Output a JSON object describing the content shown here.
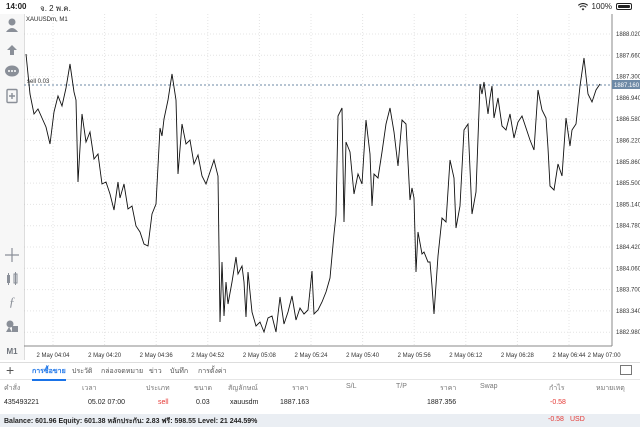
{
  "status": {
    "time": "14:00",
    "date": "จ. 2 พ.ค.",
    "battery": "100%"
  },
  "toolbar": {
    "icons": [
      "person-icon",
      "trade-icon",
      "chat-icon",
      "new-doc-icon",
      "crosshair-icon",
      "indicator-icon",
      "function-icon",
      "objects-icon",
      "timeframe-icon"
    ],
    "timeframe_label": "M1"
  },
  "chart": {
    "symbol_title": "XAUUSDm, M1",
    "position_label": "sell 0.03",
    "current_price_label": "1887.160",
    "price_ticks": [
      "1888.020",
      "1887.660",
      "1887.300",
      "1886.940",
      "1886.580",
      "1886.220",
      "1885.860",
      "1885.500",
      "1885.140",
      "1884.780",
      "1884.420",
      "1884.060",
      "1883.700",
      "1883.340",
      "1882.980"
    ],
    "time_ticks": [
      "2 May 04:04",
      "2 May 04:20",
      "2 May 04:36",
      "2 May 04:52",
      "2 May 05:08",
      "2 May 05:24",
      "2 May 05:40",
      "2 May 05:56",
      "2 May 06:12",
      "2 May 06:28",
      "2 May 06:44",
      "2 May 07:00"
    ],
    "colors": {
      "line": "#111111",
      "grid": "#e4e4e4",
      "price_line": "#6e8aa6",
      "price_label_bg": "#6e8aa6"
    }
  },
  "tabs": {
    "plus": "+",
    "items": [
      "การซื้อขาย",
      "ประวัติ",
      "กล่องจดหมาย",
      "ข่าว",
      "บันทึก",
      "การตั้งค่า"
    ],
    "active_index": 0
  },
  "table": {
    "headers": [
      "คำสั่ง",
      "เวลา",
      "ประเภท",
      "ขนาด",
      "สัญลักษณ์",
      "ราคา",
      "S/L",
      "T/P",
      "ราคา",
      "Swap",
      "กำไร",
      "หมายเหตุ"
    ],
    "row": {
      "order": "435493221",
      "time": "05.02 07:00",
      "type": "sell",
      "size": "0.03",
      "symbol": "xauusdm",
      "open_price": "1887.163",
      "current_price": "1887.356",
      "profit": "-0.58"
    }
  },
  "balance": {
    "summary": "Balance: 601.96 Equity: 601.38 หลักประกัน: 2.83 ฟรี: 598.55 Level: 21 244.59%",
    "total": "-0.58",
    "currency": "USD"
  }
}
